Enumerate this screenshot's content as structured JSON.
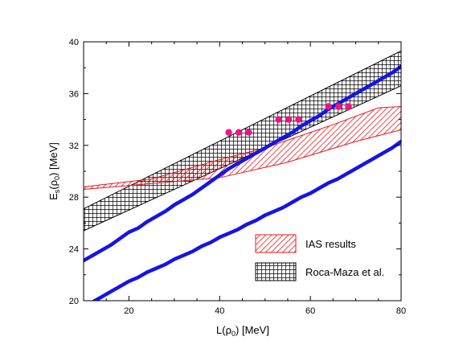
{
  "chart_data": {
    "type": "line",
    "xlabel": {
      "main": "L(ρ",
      "sub": "0",
      "tail": ") [MeV]"
    },
    "ylabel": {
      "main": "E",
      "sub1": "s",
      "mid": "(ρ",
      "sub2": "0",
      "tail": ") [MeV]"
    },
    "xlim": [
      10,
      80
    ],
    "ylim": [
      20,
      40
    ],
    "xticks": [
      20,
      40,
      60,
      80
    ],
    "yticks": [
      20,
      24,
      28,
      32,
      36,
      40
    ],
    "grid": false,
    "legend_position": "bottom-right",
    "legend": [
      {
        "label": "IAS results",
        "style": "red-diagonal-hatch"
      },
      {
        "label": "Roca-Maza et al.",
        "style": "black-crosshatch"
      }
    ],
    "bands": [
      {
        "name": "Roca-Maza et al.",
        "color": "#000000",
        "hatch": "crosshatch",
        "lower": [
          [
            10,
            25.4
          ],
          [
            80,
            36.6
          ]
        ],
        "upper": [
          [
            10,
            27.1
          ],
          [
            80,
            39.3
          ]
        ]
      },
      {
        "name": "IAS results",
        "color": "#e8181e",
        "hatch": "diagonal",
        "lower": [
          [
            10,
            28.6
          ],
          [
            40,
            29.5
          ],
          [
            55,
            30.7
          ],
          [
            70,
            32.3
          ],
          [
            80,
            33.2
          ]
        ],
        "upper": [
          [
            10,
            28.8
          ],
          [
            25,
            29.4
          ],
          [
            40,
            30.9
          ],
          [
            50,
            31.8
          ],
          [
            65,
            33.6
          ],
          [
            75,
            34.9
          ],
          [
            80,
            35.0
          ]
        ]
      }
    ],
    "lines": [
      {
        "color": "#1414e6",
        "points": [
          [
            10,
            23.1
          ],
          [
            12,
            23.5
          ],
          [
            14,
            23.9
          ],
          [
            16,
            24.3
          ],
          [
            18,
            24.8
          ],
          [
            20,
            25.3
          ],
          [
            22,
            25.6
          ],
          [
            24,
            26.1
          ],
          [
            26,
            26.5
          ],
          [
            28,
            26.9
          ],
          [
            30,
            27.4
          ],
          [
            32,
            27.8
          ],
          [
            34,
            28.2
          ],
          [
            36,
            28.7
          ],
          [
            38,
            29.2
          ],
          [
            40,
            29.7
          ],
          [
            42,
            30.2
          ],
          [
            44,
            30.6
          ],
          [
            46,
            31.0
          ],
          [
            48,
            31.4
          ],
          [
            50,
            31.8
          ],
          [
            52,
            32.2
          ],
          [
            54,
            32.6
          ],
          [
            56,
            33.0
          ],
          [
            58,
            33.5
          ],
          [
            60,
            33.9
          ],
          [
            62,
            34.3
          ],
          [
            64,
            34.8
          ],
          [
            66,
            35.2
          ],
          [
            68,
            35.6
          ],
          [
            70,
            36.0
          ],
          [
            72,
            36.4
          ],
          [
            74,
            36.8
          ],
          [
            76,
            37.2
          ],
          [
            78,
            37.6
          ],
          [
            80,
            38.1
          ]
        ]
      },
      {
        "color": "#1414e6",
        "points": [
          [
            10,
            19.5
          ],
          [
            12,
            19.9
          ],
          [
            14,
            20.3
          ],
          [
            16,
            20.7
          ],
          [
            18,
            21.1
          ],
          [
            20,
            21.5
          ],
          [
            22,
            21.8
          ],
          [
            24,
            22.2
          ],
          [
            26,
            22.5
          ],
          [
            28,
            22.8
          ],
          [
            30,
            23.2
          ],
          [
            32,
            23.5
          ],
          [
            34,
            23.8
          ],
          [
            36,
            24.2
          ],
          [
            38,
            24.5
          ],
          [
            40,
            24.9
          ],
          [
            42,
            25.2
          ],
          [
            44,
            25.5
          ],
          [
            46,
            25.9
          ],
          [
            48,
            26.2
          ],
          [
            50,
            26.6
          ],
          [
            52,
            26.9
          ],
          [
            54,
            27.2
          ],
          [
            56,
            27.6
          ],
          [
            58,
            28.0
          ],
          [
            60,
            28.3
          ],
          [
            62,
            28.7
          ],
          [
            64,
            29.1
          ],
          [
            66,
            29.4
          ],
          [
            68,
            29.8
          ],
          [
            70,
            30.2
          ],
          [
            72,
            30.6
          ],
          [
            74,
            31.0
          ],
          [
            76,
            31.4
          ],
          [
            78,
            31.8
          ],
          [
            80,
            32.3
          ]
        ]
      }
    ],
    "points": {
      "color": "#ee1481",
      "values": [
        [
          42,
          33.0
        ],
        [
          44.2,
          33.0
        ],
        [
          46.4,
          33.0
        ],
        [
          53,
          34.0
        ],
        [
          55.2,
          34.0
        ],
        [
          57.4,
          34.0
        ],
        [
          64,
          35.0
        ],
        [
          66.2,
          35.0
        ],
        [
          68.4,
          35.0
        ]
      ]
    }
  }
}
